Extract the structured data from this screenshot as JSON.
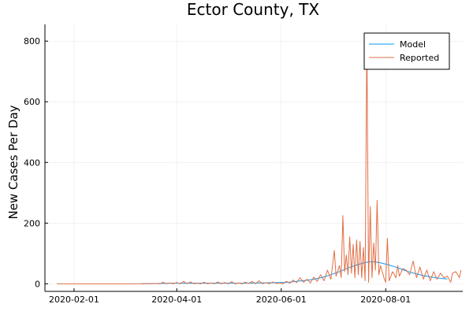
{
  "chart_data": {
    "type": "line",
    "title": "Ector County, TX",
    "xlabel": "",
    "ylabel": "New Cases Per Day",
    "x_type": "date",
    "xlim": [
      "2020-01-15",
      "2020-09-15"
    ],
    "ylim": [
      -25,
      855
    ],
    "x_ticks": [
      "2020-02-01",
      "2020-04-01",
      "2020-06-01",
      "2020-08-01"
    ],
    "y_ticks": [
      0,
      200,
      400,
      600,
      800
    ],
    "grid": true,
    "legend_position": "top-right",
    "series": [
      {
        "name": "Model",
        "color": "#009AFA",
        "points": [
          [
            "2020-03-11",
            0
          ],
          [
            "2020-03-21",
            1
          ],
          [
            "2020-03-31",
            2
          ],
          [
            "2020-04-10",
            2
          ],
          [
            "2020-04-20",
            2
          ],
          [
            "2020-04-30",
            2
          ],
          [
            "2020-05-10",
            2
          ],
          [
            "2020-05-20",
            3
          ],
          [
            "2020-05-30",
            4
          ],
          [
            "2020-06-05",
            5
          ],
          [
            "2020-06-10",
            8
          ],
          [
            "2020-06-15",
            11
          ],
          [
            "2020-06-20",
            15
          ],
          [
            "2020-06-25",
            21
          ],
          [
            "2020-06-30",
            30
          ],
          [
            "2020-07-05",
            40
          ],
          [
            "2020-07-10",
            52
          ],
          [
            "2020-07-15",
            62
          ],
          [
            "2020-07-20",
            70
          ],
          [
            "2020-07-23",
            73
          ],
          [
            "2020-07-26",
            72
          ],
          [
            "2020-07-29",
            69
          ],
          [
            "2020-08-03",
            62
          ],
          [
            "2020-08-08",
            53
          ],
          [
            "2020-08-13",
            42
          ],
          [
            "2020-08-18",
            34
          ],
          [
            "2020-08-23",
            27
          ],
          [
            "2020-08-28",
            22
          ],
          [
            "2020-09-02",
            18
          ],
          [
            "2020-09-06",
            16
          ]
        ]
      },
      {
        "name": "Reported",
        "color": "#E26F46",
        "points": [
          [
            "2020-01-22",
            0
          ],
          [
            "2020-02-15",
            0
          ],
          [
            "2020-03-10",
            0
          ],
          [
            "2020-03-18",
            1
          ],
          [
            "2020-03-22",
            0
          ],
          [
            "2020-03-24",
            5
          ],
          [
            "2020-03-26",
            0
          ],
          [
            "2020-03-28",
            3
          ],
          [
            "2020-03-30",
            0
          ],
          [
            "2020-04-01",
            4
          ],
          [
            "2020-04-03",
            0
          ],
          [
            "2020-04-05",
            8
          ],
          [
            "2020-04-07",
            0
          ],
          [
            "2020-04-09",
            6
          ],
          [
            "2020-04-11",
            0
          ],
          [
            "2020-04-13",
            2
          ],
          [
            "2020-04-15",
            0
          ],
          [
            "2020-04-17",
            5
          ],
          [
            "2020-04-19",
            0
          ],
          [
            "2020-04-21",
            3
          ],
          [
            "2020-04-23",
            0
          ],
          [
            "2020-04-25",
            6
          ],
          [
            "2020-04-27",
            0
          ],
          [
            "2020-04-29",
            4
          ],
          [
            "2020-05-01",
            0
          ],
          [
            "2020-05-03",
            7
          ],
          [
            "2020-05-05",
            0
          ],
          [
            "2020-05-07",
            3
          ],
          [
            "2020-05-09",
            0
          ],
          [
            "2020-05-11",
            5
          ],
          [
            "2020-05-13",
            1
          ],
          [
            "2020-05-15",
            8
          ],
          [
            "2020-05-17",
            0
          ],
          [
            "2020-05-19",
            10
          ],
          [
            "2020-05-21",
            0
          ],
          [
            "2020-05-23",
            4
          ],
          [
            "2020-05-25",
            0
          ],
          [
            "2020-05-27",
            6
          ],
          [
            "2020-05-29",
            1
          ],
          [
            "2020-05-31",
            3
          ],
          [
            "2020-06-02",
            0
          ],
          [
            "2020-06-04",
            8
          ],
          [
            "2020-06-06",
            2
          ],
          [
            "2020-06-08",
            12
          ],
          [
            "2020-06-10",
            4
          ],
          [
            "2020-06-12",
            20
          ],
          [
            "2020-06-14",
            5
          ],
          [
            "2020-06-16",
            15
          ],
          [
            "2020-06-18",
            3
          ],
          [
            "2020-06-20",
            22
          ],
          [
            "2020-06-22",
            8
          ],
          [
            "2020-06-24",
            30
          ],
          [
            "2020-06-26",
            10
          ],
          [
            "2020-06-28",
            45
          ],
          [
            "2020-06-30",
            15
          ],
          [
            "2020-07-02",
            110
          ],
          [
            "2020-07-03",
            25
          ],
          [
            "2020-07-05",
            60
          ],
          [
            "2020-07-06",
            20
          ],
          [
            "2020-07-07",
            225
          ],
          [
            "2020-07-08",
            40
          ],
          [
            "2020-07-09",
            95
          ],
          [
            "2020-07-10",
            30
          ],
          [
            "2020-07-11",
            155
          ],
          [
            "2020-07-12",
            35
          ],
          [
            "2020-07-13",
            130
          ],
          [
            "2020-07-14",
            20
          ],
          [
            "2020-07-15",
            145
          ],
          [
            "2020-07-16",
            30
          ],
          [
            "2020-07-17",
            140
          ],
          [
            "2020-07-18",
            20
          ],
          [
            "2020-07-19",
            120
          ],
          [
            "2020-07-20",
            10
          ],
          [
            "2020-07-21",
            825
          ],
          [
            "2020-07-22",
            5
          ],
          [
            "2020-07-23",
            255
          ],
          [
            "2020-07-24",
            20
          ],
          [
            "2020-07-25",
            135
          ],
          [
            "2020-07-26",
            45
          ],
          [
            "2020-07-27",
            275
          ],
          [
            "2020-07-28",
            30
          ],
          [
            "2020-07-29",
            60
          ],
          [
            "2020-07-30",
            40
          ],
          [
            "2020-07-31",
            20
          ],
          [
            "2020-08-01",
            5
          ],
          [
            "2020-08-02",
            150
          ],
          [
            "2020-08-03",
            10
          ],
          [
            "2020-08-05",
            40
          ],
          [
            "2020-08-07",
            20
          ],
          [
            "2020-08-08",
            60
          ],
          [
            "2020-08-09",
            25
          ],
          [
            "2020-08-11",
            50
          ],
          [
            "2020-08-13",
            45
          ],
          [
            "2020-08-15",
            30
          ],
          [
            "2020-08-17",
            75
          ],
          [
            "2020-08-19",
            20
          ],
          [
            "2020-08-21",
            55
          ],
          [
            "2020-08-23",
            15
          ],
          [
            "2020-08-25",
            45
          ],
          [
            "2020-08-27",
            10
          ],
          [
            "2020-08-29",
            40
          ],
          [
            "2020-08-31",
            15
          ],
          [
            "2020-09-02",
            35
          ],
          [
            "2020-09-04",
            20
          ],
          [
            "2020-09-06",
            25
          ],
          [
            "2020-09-08",
            5
          ],
          [
            "2020-09-09",
            35
          ],
          [
            "2020-09-11",
            40
          ],
          [
            "2020-09-13",
            20
          ],
          [
            "2020-09-14",
            45
          ]
        ]
      }
    ]
  }
}
